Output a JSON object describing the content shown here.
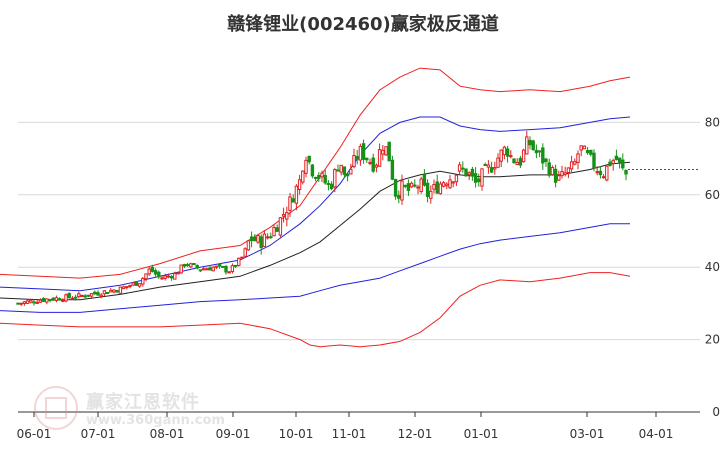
{
  "title": "赣锋锂业(002460)赢家极反通道",
  "watermark": {
    "brand": "赢家江恩软件",
    "url": "www.360gann.com"
  },
  "colors": {
    "band_outer": "#ee2222",
    "band_inner": "#2222dd",
    "mid_line": "#222222",
    "candle_up": "#e02020",
    "candle_down": "#169016",
    "last_price_line": "#008800",
    "grid": "#d9d9d9",
    "axis_text": "#333333"
  },
  "chart_data": {
    "type": "line",
    "subtype": "candlestick-with-channel",
    "title": "赣锋锂业(002460)赢家极反通道",
    "x_ticks": [
      "06-01",
      "07-01",
      "08-01",
      "09-01",
      "10-01",
      "11-01",
      "12-01",
      "01-01",
      "03-01",
      "04-01"
    ],
    "y_ticks": [
      0,
      20,
      40,
      60,
      80
    ],
    "ylim": [
      0,
      100
    ],
    "grid": "horizontal",
    "last_price": 67,
    "series": [
      {
        "key": "upper_outer",
        "x": [
          0,
          40,
          80,
          120,
          160,
          200,
          240,
          270,
          300,
          320,
          340,
          360,
          380,
          400,
          420,
          440,
          460,
          480,
          500,
          530,
          560,
          590,
          610,
          630
        ],
        "y": [
          38,
          37.5,
          37,
          38,
          41,
          44.5,
          46,
          51,
          57,
          65,
          73,
          82,
          89,
          92.5,
          95,
          94.5,
          90,
          89,
          88.5,
          89,
          88.5,
          90,
          91.5,
          92.5
        ]
      },
      {
        "key": "upper_inner",
        "x": [
          0,
          40,
          80,
          120,
          160,
          200,
          240,
          270,
          300,
          320,
          340,
          360,
          380,
          400,
          420,
          440,
          460,
          480,
          500,
          530,
          560,
          590,
          610,
          630
        ],
        "y": [
          34.5,
          34,
          33.5,
          35,
          37.5,
          40,
          42,
          46,
          52,
          57,
          63,
          71,
          77,
          80,
          81.5,
          81.5,
          79,
          78,
          77.5,
          78,
          78.5,
          80,
          81,
          81.5
        ]
      },
      {
        "key": "middle",
        "x": [
          0,
          40,
          80,
          120,
          160,
          200,
          240,
          270,
          300,
          320,
          340,
          360,
          380,
          400,
          420,
          440,
          460,
          480,
          500,
          530,
          560,
          590,
          610,
          630
        ],
        "y": [
          31.5,
          31,
          31,
          32.5,
          34.5,
          36,
          37.5,
          40.5,
          44,
          47,
          51.5,
          56,
          61,
          64,
          65.5,
          66.5,
          65.5,
          65,
          65,
          65.5,
          65.5,
          67,
          68.5,
          69
        ]
      },
      {
        "key": "lower_inner",
        "x": [
          0,
          40,
          80,
          120,
          160,
          200,
          240,
          270,
          300,
          320,
          340,
          360,
          380,
          400,
          420,
          440,
          460,
          480,
          500,
          530,
          560,
          590,
          610,
          630
        ],
        "y": [
          28,
          27.5,
          27.5,
          28.5,
          29.5,
          30.5,
          31,
          31.5,
          32,
          33.5,
          35,
          36,
          37,
          39,
          41,
          43,
          45,
          46.5,
          47.5,
          48.5,
          49.5,
          51,
          52,
          52
        ]
      },
      {
        "key": "lower_outer",
        "x": [
          0,
          40,
          80,
          120,
          160,
          200,
          240,
          270,
          300,
          310,
          320,
          340,
          360,
          380,
          400,
          420,
          440,
          460,
          480,
          500,
          530,
          560,
          590,
          610,
          630
        ],
        "y": [
          24.5,
          24,
          23.5,
          23.5,
          23.5,
          24,
          24.5,
          23,
          20,
          18.5,
          18,
          18.5,
          18,
          18.5,
          19.5,
          22,
          26,
          32,
          35,
          36.5,
          36,
          37,
          38.5,
          38.5,
          37.5
        ]
      }
    ],
    "candles": [
      {
        "x": [
          20,
          120,
          240
        ],
        "open": [
          30,
          34,
          38
        ],
        "close": [
          31,
          36,
          39
        ]
      }
    ],
    "price_path": {
      "x": [
        18,
        40,
        60,
        80,
        100,
        120,
        140,
        150,
        160,
        175,
        185,
        200,
        215,
        230,
        243,
        250,
        260,
        270,
        280,
        290,
        300,
        305,
        312,
        320,
        330,
        340,
        345,
        352,
        360,
        368,
        375,
        382,
        388,
        396,
        402,
        410,
        420,
        428,
        436,
        444,
        452,
        460,
        468,
        476,
        484,
        492,
        500,
        506,
        512,
        520,
        528,
        535,
        542,
        550,
        558,
        566,
        574,
        580,
        586,
        592,
        598,
        604,
        610,
        616,
        622,
        628
      ],
      "y": [
        30,
        31,
        31.5,
        32,
        33,
        34,
        36,
        39.5,
        37,
        38,
        41,
        39.5,
        40,
        39,
        43,
        48,
        47,
        49,
        53,
        58,
        64,
        72,
        67,
        65,
        62,
        70,
        64,
        68,
        72,
        70,
        68,
        74,
        72,
        60,
        62,
        61,
        63,
        60,
        62,
        64,
        65,
        67,
        66,
        63,
        66,
        68,
        71,
        73,
        70,
        69,
        75,
        72,
        70,
        67,
        64,
        66,
        68,
        73,
        71,
        69,
        67,
        66,
        69,
        70,
        67,
        65
      ]
    }
  }
}
